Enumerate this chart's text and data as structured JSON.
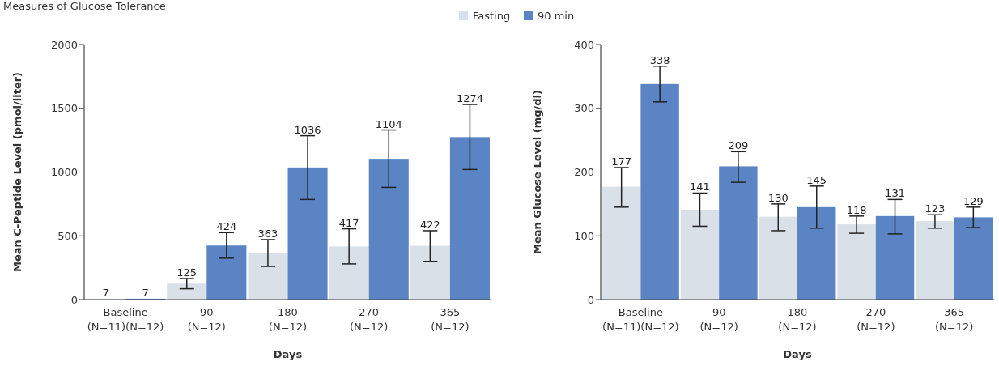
{
  "chart_data": [
    {
      "type": "bar",
      "title": "Measures of Glucose Tolerance",
      "xlabel": "Days",
      "ylabel": "Mean C-Peptide Level (pmol/liter)",
      "categories": [
        "Baseline\n(N=11)(N=12)",
        "90\n(N=12)",
        "180\n(N=12)",
        "270\n(N=12)",
        "365\n(N=12)"
      ],
      "series": [
        {
          "name": "Fasting",
          "color": "#d9e0e8",
          "values": [
            7,
            125,
            363,
            417,
            422
          ],
          "errors": [
            null,
            [
              85,
              165
            ],
            [
              260,
              470
            ],
            [
              280,
              555
            ],
            [
              300,
              540
            ]
          ]
        },
        {
          "name": "90 min",
          "color": "#5b84c4",
          "values": [
            7,
            424,
            1036,
            1104,
            1274
          ],
          "errors": [
            null,
            [
              325,
              525
            ],
            [
              785,
              1285
            ],
            [
              880,
              1330
            ],
            [
              1020,
              1530
            ]
          ]
        }
      ],
      "ylim": [
        0,
        2000
      ],
      "yticks": [
        0,
        500,
        1000,
        1500,
        2000
      ],
      "data_labels": true,
      "legend": "top right"
    },
    {
      "type": "bar",
      "xlabel": "Days",
      "ylabel": "Mean Glucose Level (mg/dl)",
      "categories": [
        "Baseline\n(N=11)(N=12)",
        "90\n(N=12)",
        "180\n(N=12)",
        "270\n(N=12)",
        "365\n(N=12)"
      ],
      "series": [
        {
          "color": "#d9e0e8",
          "values": [
            177,
            141,
            130,
            118,
            123
          ],
          "errors": [
            [
              145,
              207
            ],
            [
              115,
              167
            ],
            [
              108,
              150
            ],
            [
              104,
              131
            ],
            [
              112,
              133
            ]
          ]
        },
        {
          "color": "#5b84c4",
          "values": [
            338,
            209,
            145,
            131,
            129
          ],
          "errors": [
            [
              310,
              366
            ],
            [
              184,
              232
            ],
            [
              112,
              178
            ],
            [
              103,
              157
            ],
            [
              113,
              145
            ]
          ]
        }
      ],
      "ylim": [
        0,
        400
      ],
      "yticks": [
        0,
        100,
        200,
        300,
        400
      ],
      "data_labels": true
    }
  ]
}
